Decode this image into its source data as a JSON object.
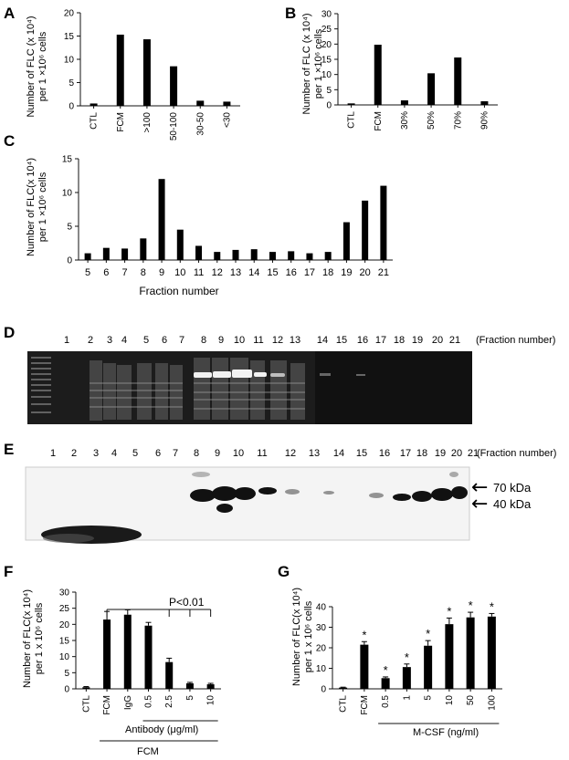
{
  "panels": {
    "A": {
      "letter": "A",
      "ylabel1": "Number of FLC (x 10⁴)",
      "ylabel2": "per 1 ×10⁶ cells"
    },
    "B": {
      "letter": "B",
      "ylabel1": "Number of FLC (x 10⁴)",
      "ylabel2": "per 1 ×10⁶ cells"
    },
    "C": {
      "letter": "C",
      "ylabel1": "Number of FLC(x 10⁴)",
      "ylabel2": "per 1 ×10⁶ cells"
    },
    "D": {
      "letter": "D",
      "lanes": [
        "1",
        "2",
        "3",
        "4",
        "5",
        "6",
        "7",
        "8",
        "9",
        "10",
        "11",
        "12",
        "13",
        "14",
        "15",
        "16",
        "17",
        "18",
        "19",
        "20",
        "21"
      ],
      "suffix": "(Fraction number)"
    },
    "E": {
      "letter": "E",
      "lanes": [
        "1",
        "2",
        "3",
        "4",
        "5",
        "6",
        "7",
        "8",
        "9",
        "10",
        "11",
        "12",
        "13",
        "14",
        "15",
        "16",
        "17",
        "18",
        "19",
        "20",
        "21"
      ],
      "suffix": "(Fraction number)",
      "marker_70": "70 kDa",
      "marker_40": "40 kDa",
      "arrow": "←"
    },
    "F": {
      "letter": "F",
      "ylabel1": "Number of FLC(x 10⁴)",
      "ylabel2": "per 1 x 10⁶ cells",
      "pvalue": "P<0.01",
      "antibody_label": "Antibody (μg/ml)",
      "fcm_label": "FCM"
    },
    "G": {
      "letter": "G",
      "ylabel1": "Number of FLC(x 10⁴)",
      "ylabel2": "per 1 x 10⁶ cells",
      "star": "*",
      "mcsf_label": "M-CSF (ng/ml)"
    }
  },
  "chart_data": [
    {
      "panel": "A",
      "type": "bar",
      "categories": [
        "CTL",
        "FCM",
        ">100",
        "50-100",
        "30-50",
        "<30"
      ],
      "values": [
        0.5,
        15.3,
        14.3,
        8.5,
        1.1,
        0.9
      ],
      "ylim": [
        0,
        20
      ],
      "yticks": [
        0,
        5,
        10,
        15,
        20
      ]
    },
    {
      "panel": "B",
      "type": "bar",
      "categories": [
        "CTL",
        "FCM",
        "30%",
        "50%",
        "70%",
        "90%"
      ],
      "values": [
        0.5,
        19.8,
        1.5,
        10.4,
        15.6,
        1.2
      ],
      "ylim": [
        0,
        30
      ],
      "yticks": [
        0,
        5,
        10,
        15,
        20,
        25,
        30
      ]
    },
    {
      "panel": "C",
      "type": "bar",
      "xlabel": "Fraction number",
      "categories": [
        "5",
        "6",
        "7",
        "8",
        "9",
        "10",
        "11",
        "12",
        "13",
        "14",
        "15",
        "16",
        "17",
        "18",
        "19",
        "20",
        "21"
      ],
      "values": [
        1.0,
        1.8,
        1.7,
        3.2,
        12.0,
        4.5,
        2.1,
        1.2,
        1.5,
        1.6,
        1.2,
        1.3,
        1.0,
        1.2,
        5.6,
        8.8,
        11.0
      ],
      "ylim": [
        0,
        15
      ],
      "yticks": [
        0,
        5,
        10,
        15
      ]
    },
    {
      "panel": "F",
      "type": "bar",
      "categories": [
        "CTL",
        "FCM",
        "IgG",
        "0.5",
        "2.5",
        "5",
        "10"
      ],
      "values": [
        0.5,
        21.5,
        23.0,
        19.6,
        8.3,
        1.7,
        1.4
      ],
      "errors": [
        0.2,
        2.5,
        1.5,
        1.0,
        1.2,
        0.3,
        0.3
      ],
      "ylim": [
        0,
        30
      ],
      "yticks": [
        0,
        5,
        10,
        15,
        20,
        25,
        30
      ]
    },
    {
      "panel": "G",
      "type": "bar",
      "categories": [
        "CTL",
        "FCM",
        "0.5",
        "1",
        "5",
        "10",
        "50",
        "100"
      ],
      "values": [
        0.6,
        21.5,
        5.2,
        10.6,
        21.0,
        31.5,
        34.8,
        35.2
      ],
      "errors": [
        0.2,
        1.5,
        0.6,
        1.5,
        2.5,
        3.0,
        2.5,
        1.5
      ],
      "significant": [
        false,
        true,
        true,
        true,
        true,
        true,
        true,
        true
      ],
      "ylim": [
        0,
        40
      ],
      "yticks": [
        0,
        10,
        20,
        30,
        40
      ]
    }
  ]
}
